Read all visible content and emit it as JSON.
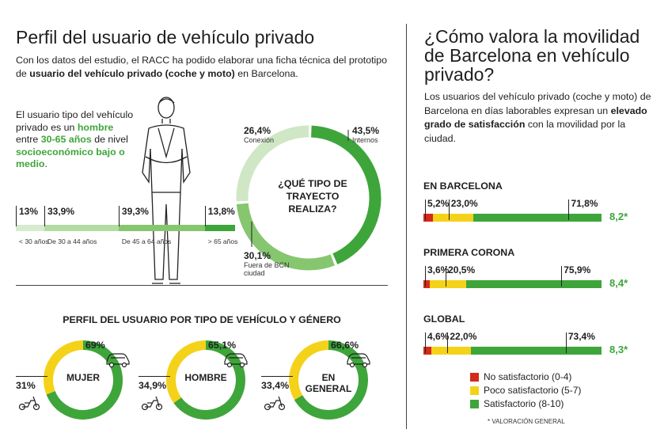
{
  "left": {
    "title": "Perfil del usuario de vehículo privado",
    "intro": {
      "t1": "Con los datos del estudio, el RACC ha podido elaborar una ficha técnica del prototipo de ",
      "t2": "usuario del vehículo privado (coche y moto)",
      "t3": " en Barcelona."
    },
    "profile": {
      "t1": "El usuario tipo del vehículo privado es un ",
      "t2": "hombre",
      "t3": " entre ",
      "t4": "30-65 años",
      "t5": " de nivel ",
      "t6": "socioeconómico bajo o medio",
      "t7": "."
    },
    "age_bar": {
      "segments": [
        {
          "pct": "13%",
          "label": "< 30 años",
          "value": 13,
          "color": "#d6ebcf"
        },
        {
          "pct": "33,9%",
          "label": "De 30 a 44 años",
          "value": 33.9,
          "color": "#b3dca2"
        },
        {
          "pct": "39,3%",
          "label": "De 45 a 64 años",
          "value": 39.3,
          "color": "#86c66f"
        },
        {
          "pct": "13,8%",
          "label": "> 65 años",
          "value": 13.8,
          "color": "#3ea53a"
        }
      ]
    },
    "donut": {
      "center": "¿QUÉ TIPO DE TRAYECTO REALIZA?",
      "items": [
        {
          "pct": "43,5%",
          "label": "Internos",
          "value": 43.5,
          "color": "#3ea53a"
        },
        {
          "pct": "30,1%",
          "label": "Fuera de BCN ciudad",
          "value": 30.1,
          "color": "#86c66f"
        },
        {
          "pct": "26,4%",
          "label": "Conexión",
          "value": 26.4,
          "color": "#cfe7c4"
        }
      ]
    },
    "gender_title": "PERFIL DEL USUARIO POR TIPO DE VEHÍCULO Y GÉNERO",
    "gender": [
      {
        "label": "MUJER",
        "car": "69%",
        "moto": "31%",
        "car_value": 69
      },
      {
        "label": "HOMBRE",
        "car": "65,1%",
        "moto": "34,9%",
        "car_value": 65.1
      },
      {
        "label": "EN GENERAL",
        "car": "66,6%",
        "moto": "33,4%",
        "car_value": 66.6
      }
    ]
  },
  "right": {
    "title": "¿Cómo valora la movilidad de Barcelona en vehículo privado?",
    "intro": {
      "t1": "Los usuarios del vehículo privado (coche y moto) de Barcelona en días laborables expresan un ",
      "t2": "elevado grado de satisfacción",
      "t3": " con la movilidad por la ciudad."
    },
    "bars": [
      {
        "name": "EN BARCELONA",
        "red": "5,2%",
        "yellow": "23,0%",
        "green": "71,8%",
        "r": 5.2,
        "y": 23.0,
        "g": 71.8,
        "score": "8,2*"
      },
      {
        "name": "PRIMERA CORONA",
        "red": "3,6%",
        "yellow": "20,5%",
        "green": "75,9%",
        "r": 3.6,
        "y": 20.5,
        "g": 75.9,
        "score": "8,4*"
      },
      {
        "name": "GLOBAL",
        "red": "4,6%",
        "yellow": "22,0%",
        "green": "73,4%",
        "r": 4.6,
        "y": 22.0,
        "g": 73.4,
        "score": "8,3*"
      }
    ],
    "legend": [
      {
        "label": "No satisfactorio (0-4)",
        "color": "#d42a1a"
      },
      {
        "label": "Poco satisfactorio (5-7)",
        "color": "#f5d21a"
      },
      {
        "label": "Satisfactorio (8-10)",
        "color": "#3ea53a"
      }
    ],
    "footnote": "* VALORACIÓN GENERAL"
  },
  "colors": {
    "green": "#3ea53a",
    "yellow": "#f5d21a",
    "red": "#d42a1a"
  },
  "icons": [
    "person-illustration",
    "car-icon",
    "scooter-icon"
  ]
}
